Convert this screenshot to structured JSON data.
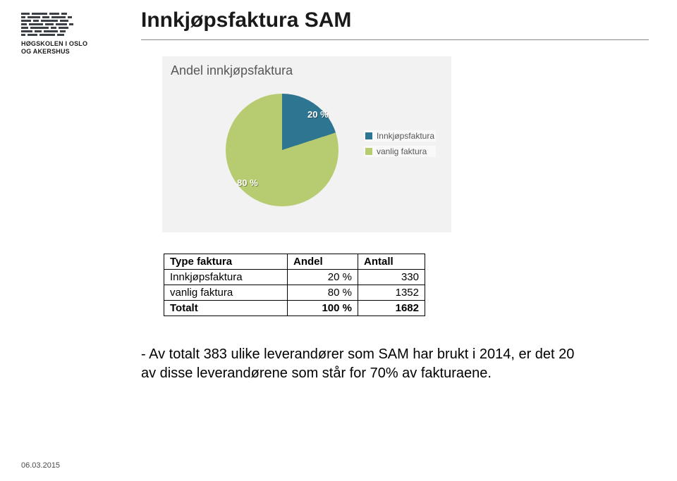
{
  "branding": {
    "org_line1": "HØGSKOLEN I OSLO",
    "org_line2": "OG AKERSHUS",
    "logo_color": "#3b3f46"
  },
  "title": "Innkjøpsfaktura SAM",
  "divider_color": "#8a8a8a",
  "chart": {
    "type": "pie",
    "title": "Andel innkjøpsfaktura",
    "panel_bg": "#f2f2f2",
    "title_color": "#575757",
    "title_fontsize": 18,
    "series": [
      {
        "name": "Innkjøpsfaktura",
        "value_pct": 20,
        "label": "20 %",
        "color": "#2e7591"
      },
      {
        "name": "vanlig faktura",
        "value_pct": 80,
        "label": "80 %",
        "color": "#b7cc70"
      }
    ],
    "label_color": "#ffffff",
    "label_fontsize": 13,
    "legend_fontsize": 12,
    "legend_color": "#575757"
  },
  "table": {
    "columns": [
      "Type faktura",
      "Andel",
      "Antall"
    ],
    "rows": [
      [
        "Innkjøpsfaktura",
        "20 %",
        "330"
      ],
      [
        "vanlig faktura",
        "80 %",
        "1352"
      ]
    ],
    "total_row": [
      "Totalt",
      "100 %",
      "1682"
    ],
    "border_color": "#000000",
    "fontsize": 15
  },
  "note": "- Av totalt 383 ulike leverandører som SAM har brukt i 2014, er det 20 av disse leverandørene som står for 70% av fakturaene.",
  "footer_date": "06.03.2015"
}
